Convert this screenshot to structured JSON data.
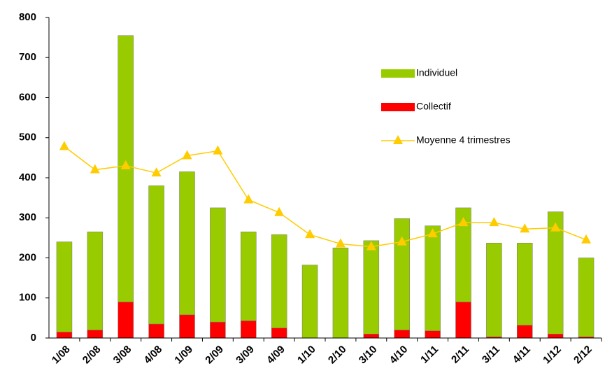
{
  "chart_data": {
    "type": "bar",
    "categories": [
      "1/08",
      "2/08",
      "3/08",
      "4/08",
      "1/09",
      "2/09",
      "3/09",
      "4/09",
      "1/10",
      "2/10",
      "3/10",
      "4/10",
      "1/11",
      "2/11",
      "3/11",
      "4/11",
      "1/12",
      "2/12"
    ],
    "series": [
      {
        "name": "Individuel",
        "kind": "bar",
        "color": "#99cc00",
        "values": [
          225,
          245,
          665,
          345,
          357,
          285,
          222,
          233,
          182,
          225,
          233,
          278,
          262,
          235,
          234,
          205,
          305,
          197
        ]
      },
      {
        "name": "Collectif",
        "kind": "bar",
        "color": "#ff0000",
        "values": [
          15,
          20,
          90,
          35,
          58,
          40,
          43,
          25,
          0,
          0,
          10,
          20,
          18,
          90,
          3,
          32,
          10,
          3
        ]
      },
      {
        "name": "Moyenne 4 trimestres",
        "kind": "line",
        "color": "#ffcc00",
        "values": [
          478,
          420,
          430,
          412,
          455,
          467,
          345,
          313,
          258,
          235,
          228,
          240,
          260,
          288,
          288,
          272,
          275,
          245
        ]
      }
    ],
    "ylim": [
      0,
      800
    ],
    "yticks": [
      0,
      100,
      200,
      300,
      400,
      500,
      600,
      700,
      800
    ],
    "grid": false,
    "legend": "upper right"
  }
}
